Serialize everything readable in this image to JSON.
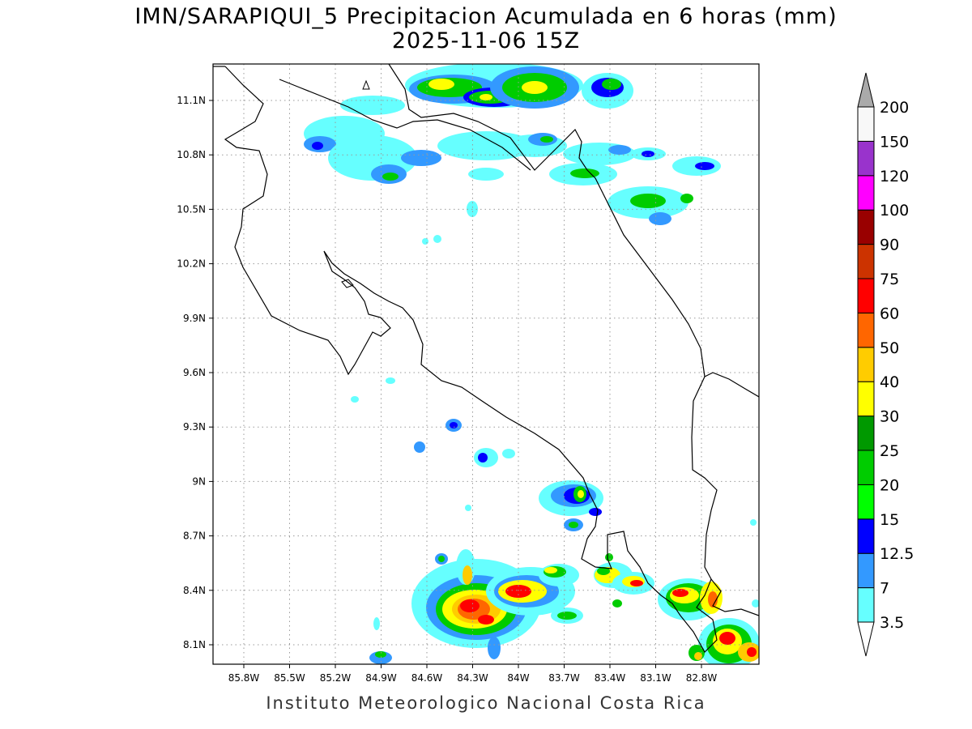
{
  "title": {
    "line1": "IMN/SARAPIQUI_5 Precipitacion Acumulada en 6 horas (mm)",
    "line2": "2025-11-06 15Z"
  },
  "footer": "Instituto Meteorologico Nacional Costa Rica",
  "map": {
    "lon_range": [
      -86.05,
      -82.55
    ],
    "lat_range": [
      8.0,
      11.3
    ],
    "x_ticks": [
      "85.8W",
      "85.5W",
      "85.2W",
      "84.9W",
      "84.6W",
      "84.3W",
      "84W",
      "83.7W",
      "83.4W",
      "83.1W",
      "82.8W"
    ],
    "y_ticks": [
      "11.1N",
      "10.8N",
      "10.5N",
      "10.2N",
      "9.9N",
      "9.6N",
      "9.3N",
      "9N",
      "8.7N",
      "8.4N",
      "8.1N"
    ],
    "grid": "dotted"
  },
  "colorbar": {
    "labels": [
      "3.5",
      "7",
      "12.5",
      "15",
      "20",
      "25",
      "30",
      "40",
      "50",
      "60",
      "75",
      "90",
      "100",
      "120",
      "150",
      "200"
    ],
    "colors": [
      "#66ffff",
      "#3399ff",
      "#0000ff",
      "#00ff00",
      "#00cc00",
      "#009900",
      "#ffff00",
      "#ffcc00",
      "#ff6600",
      "#ff0000",
      "#cc3300",
      "#990000",
      "#ff00ff",
      "#9933cc",
      "#f8f8f8",
      "#aaaaaa"
    ]
  },
  "legend_colors": {
    "c35": "#66ffff",
    "c7": "#3399ff",
    "c12": "#0000ff",
    "c15": "#00ff00",
    "c20": "#00cc00",
    "c25": "#009900",
    "c30": "#ffff00",
    "c40": "#ffcc00",
    "c50": "#ff6600",
    "c60": "#ff0000",
    "c75": "#cc3300"
  }
}
